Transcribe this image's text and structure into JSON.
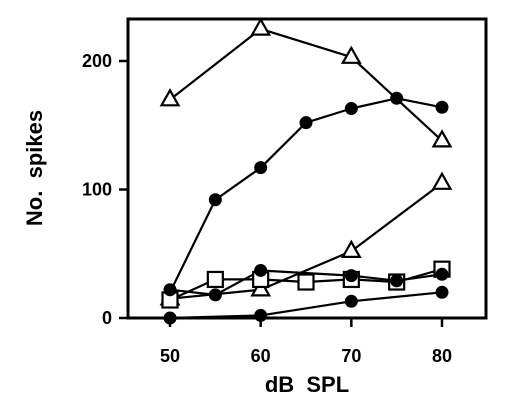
{
  "chart_data": {
    "type": "line",
    "xlabel": "dB  SPL",
    "ylabel": "No.  spikes",
    "xlim": [
      45,
      85
    ],
    "ylim": [
      0,
      230
    ],
    "xticks": [
      50,
      60,
      70,
      80
    ],
    "yticks": [
      0,
      100,
      200
    ],
    "grid": false,
    "series": [
      {
        "marker": "triangle-open",
        "x": [
          50,
          60,
          70,
          80
        ],
        "values": [
          170,
          225,
          203,
          138
        ]
      },
      {
        "marker": "circle-filled",
        "x": [
          50,
          55,
          60,
          65,
          70,
          75,
          80
        ],
        "values": [
          20,
          92,
          117,
          152,
          163,
          171,
          164
        ]
      },
      {
        "marker": "triangle-open",
        "x": [
          50,
          60,
          70,
          80
        ],
        "values": [
          15,
          22,
          52,
          105
        ]
      },
      {
        "marker": "square-open",
        "x": [
          50,
          55,
          60,
          65,
          70,
          75,
          80
        ],
        "values": [
          14,
          30,
          30,
          28,
          30,
          28,
          38
        ]
      },
      {
        "marker": "circle-filled",
        "x": [
          50,
          55,
          60,
          70,
          75,
          80
        ],
        "values": [
          22,
          18,
          37,
          33,
          29,
          34
        ]
      },
      {
        "marker": "circle-filled",
        "x": [
          50,
          60,
          70,
          80
        ],
        "values": [
          0,
          2,
          13,
          20
        ]
      }
    ]
  }
}
